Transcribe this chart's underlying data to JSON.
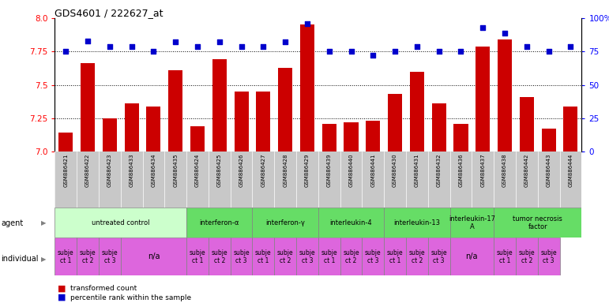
{
  "title": "GDS4601 / 222627_at",
  "samples": [
    "GSM886421",
    "GSM886422",
    "GSM886423",
    "GSM886433",
    "GSM886434",
    "GSM886435",
    "GSM886424",
    "GSM886425",
    "GSM886426",
    "GSM886427",
    "GSM886428",
    "GSM886429",
    "GSM886439",
    "GSM886440",
    "GSM886441",
    "GSM886430",
    "GSM886431",
    "GSM886432",
    "GSM886436",
    "GSM886437",
    "GSM886438",
    "GSM886442",
    "GSM886443",
    "GSM886444"
  ],
  "bar_values": [
    7.14,
    7.66,
    7.25,
    7.36,
    7.34,
    7.61,
    7.19,
    7.69,
    7.45,
    7.45,
    7.63,
    7.95,
    7.21,
    7.22,
    7.23,
    7.43,
    7.6,
    7.36,
    7.21,
    7.79,
    7.84,
    7.41,
    7.17,
    7.34
  ],
  "dot_values": [
    75,
    83,
    79,
    79,
    75,
    82,
    79,
    82,
    79,
    79,
    82,
    96,
    75,
    75,
    72,
    75,
    79,
    75,
    75,
    93,
    89,
    79,
    75,
    79
  ],
  "ylim_left": [
    7.0,
    8.0
  ],
  "ylim_right": [
    0,
    100
  ],
  "yticks_left": [
    7.0,
    7.25,
    7.5,
    7.75,
    8.0
  ],
  "yticks_right": [
    0,
    25,
    50,
    75,
    100
  ],
  "dotted_lines": [
    7.25,
    7.5,
    7.75
  ],
  "bar_color": "#cc0000",
  "dot_color": "#0000cc",
  "agent_groups": [
    {
      "label": "untreated control",
      "start": 0,
      "end": 5,
      "color": "#ccffcc"
    },
    {
      "label": "interferon-α",
      "start": 6,
      "end": 8,
      "color": "#66dd66"
    },
    {
      "label": "interferon-γ",
      "start": 9,
      "end": 11,
      "color": "#66dd66"
    },
    {
      "label": "interleukin-4",
      "start": 12,
      "end": 14,
      "color": "#66dd66"
    },
    {
      "label": "interleukin-13",
      "start": 15,
      "end": 17,
      "color": "#66dd66"
    },
    {
      "label": "interleukin-17\nA",
      "start": 18,
      "end": 19,
      "color": "#66dd66"
    },
    {
      "label": "tumor necrosis\nfactor",
      "start": 20,
      "end": 23,
      "color": "#66dd66"
    }
  ],
  "indiv_data": [
    [
      0,
      0,
      "subje\nct 1"
    ],
    [
      1,
      1,
      "subje\nct 2"
    ],
    [
      2,
      2,
      "subje\nct 3"
    ],
    [
      3,
      5,
      "n/a"
    ],
    [
      6,
      6,
      "subje\nct 1"
    ],
    [
      7,
      7,
      "subje\nct 2"
    ],
    [
      8,
      8,
      "subje\nct 3"
    ],
    [
      9,
      9,
      "subje\nct 1"
    ],
    [
      10,
      10,
      "subje\nct 2"
    ],
    [
      11,
      11,
      "subje\nct 3"
    ],
    [
      12,
      12,
      "subje\nct 1"
    ],
    [
      13,
      13,
      "subje\nct 2"
    ],
    [
      14,
      14,
      "subje\nct 3"
    ],
    [
      15,
      15,
      "subje\nct 1"
    ],
    [
      16,
      16,
      "subje\nct 2"
    ],
    [
      17,
      17,
      "subje\nct 3"
    ],
    [
      18,
      19,
      "n/a"
    ],
    [
      20,
      20,
      "subje\nct 1"
    ],
    [
      21,
      21,
      "subje\nct 2"
    ],
    [
      22,
      22,
      "subje\nct 3"
    ]
  ],
  "legend_bar_label": "transformed count",
  "legend_dot_label": "percentile rank within the sample",
  "bar_color_legend": "#cc0000",
  "dot_color_legend": "#0000cc",
  "sample_bg_color": "#c8c8c8",
  "indiv_color": "#dd66dd"
}
